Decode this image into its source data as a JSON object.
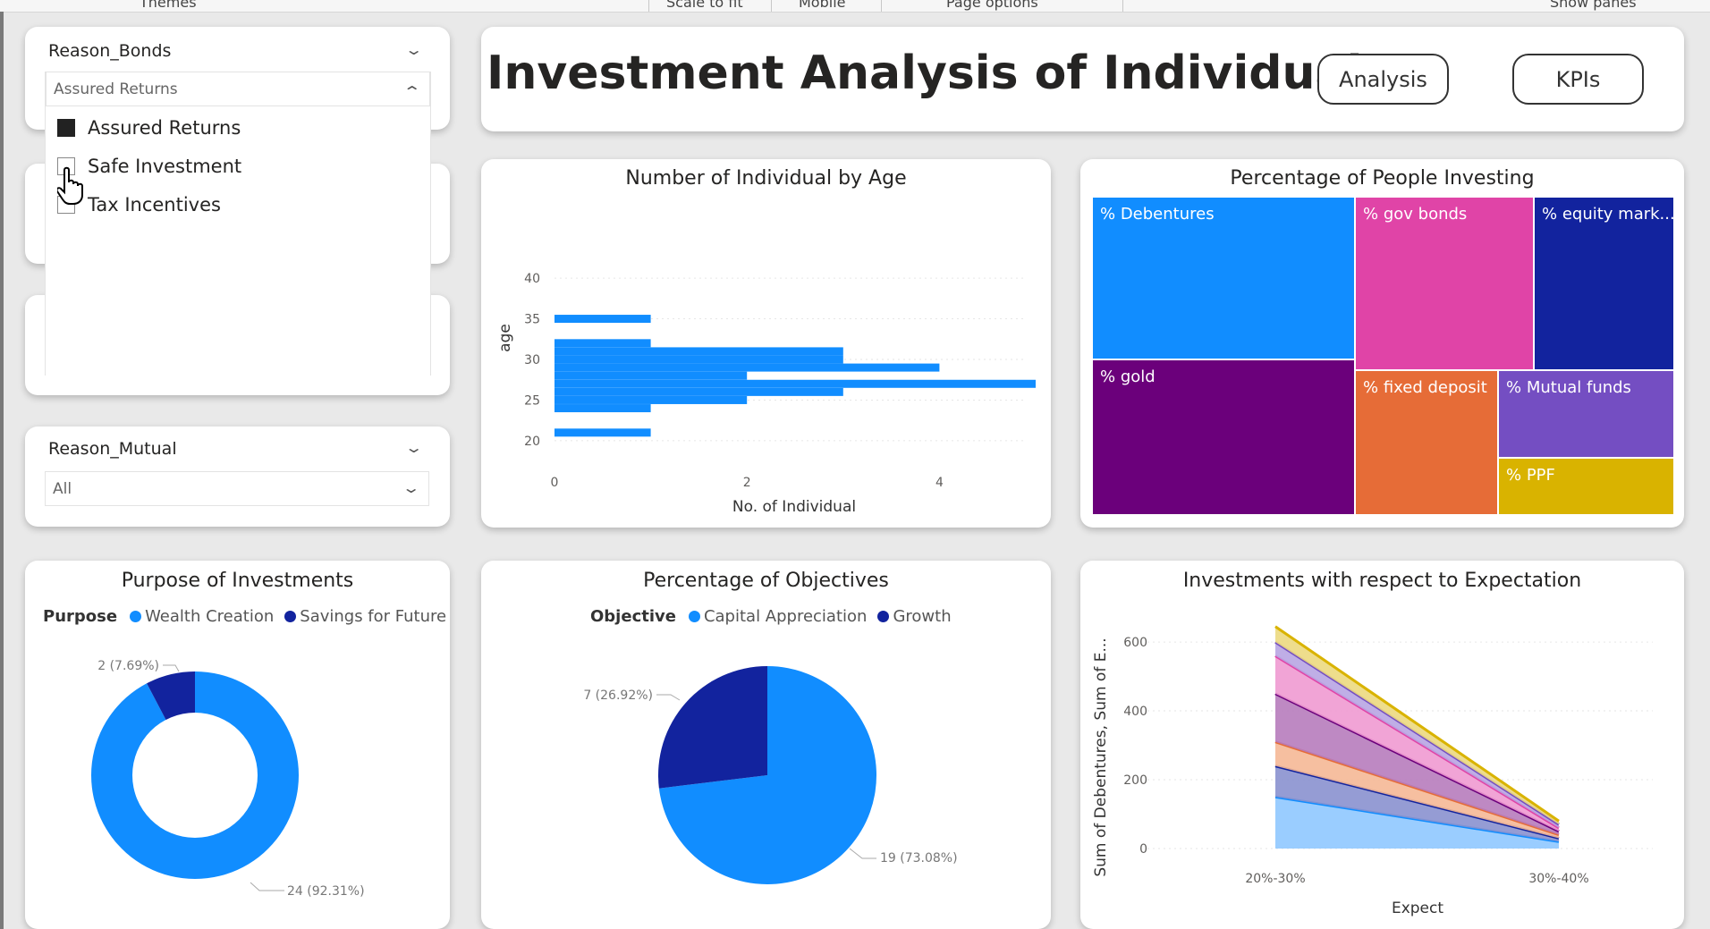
{
  "toolbar": {
    "items": [
      "Themes",
      "Scale to fit",
      "Mobile",
      "Page options",
      "Show panes"
    ]
  },
  "header": {
    "title": "Investment Analysis of Individual",
    "buttons": [
      "Analysis",
      "KPIs"
    ]
  },
  "slicer_bonds": {
    "title": "Reason_Bonds",
    "selected": "Assured Returns",
    "options": [
      {
        "label": "Assured Returns",
        "checked": true
      },
      {
        "label": "Safe Investment",
        "checked": false
      },
      {
        "label": "Tax Incentives",
        "checked": false
      }
    ]
  },
  "slicer_mutual": {
    "title": "Reason_Mutual",
    "selected": "All"
  },
  "colors": {
    "primary": "#118dff",
    "dark": "#12239e",
    "page_bg": "#e9e9e9"
  },
  "cursor": "hand-pointer-icon",
  "charts": {
    "age": {
      "title": "Number of Individual by Age"
    },
    "pct_invest": {
      "title": "Percentage of People Investing"
    },
    "purpose": {
      "title": "Purpose of Investments",
      "legend_title": "Purpose"
    },
    "objectives": {
      "title": "Percentage of Objectives",
      "legend_title": "Objective"
    },
    "expectation": {
      "title": "Investments with respect to Expectation"
    }
  },
  "chart_data": [
    {
      "id": "age",
      "type": "bar",
      "orientation": "horizontal",
      "title": "Number of Individual by Age",
      "xlabel": "No. of Individual",
      "ylabel": "age",
      "xlim": [
        0,
        5
      ],
      "ylim": [
        19,
        41
      ],
      "x_ticks": [
        0,
        2,
        4
      ],
      "y_ticks": [
        20,
        25,
        30,
        35,
        40
      ],
      "categories": [
        21,
        24,
        25,
        26,
        27,
        28,
        29,
        30,
        31,
        32,
        35
      ],
      "values": [
        1,
        1,
        2,
        3,
        5,
        2,
        4,
        3,
        3,
        1,
        1
      ],
      "grid": true
    },
    {
      "id": "pct_invest",
      "type": "treemap",
      "title": "Percentage of People Investing",
      "items": [
        {
          "label": "% Debentures",
          "color": "#118dff"
        },
        {
          "label": "% gov bonds",
          "color": "#e044a7"
        },
        {
          "label": "% equity mark...",
          "color": "#12239e"
        },
        {
          "label": "% gold",
          "color": "#6b007b"
        },
        {
          "label": "% fixed deposit",
          "color": "#e66c37"
        },
        {
          "label": "% Mutual funds",
          "color": "#744ec2"
        },
        {
          "label": "% PPF",
          "color": "#d9b300"
        }
      ]
    },
    {
      "id": "purpose",
      "type": "pie",
      "variant": "donut",
      "title": "Purpose of Investments",
      "legend_title": "Purpose",
      "series": [
        {
          "name": "Wealth Creation",
          "value": 24,
          "label": "24 (92.31%)",
          "color": "#118dff"
        },
        {
          "name": "Savings for Future",
          "value": 2,
          "label": "2 (7.69%)",
          "color": "#12239e"
        }
      ]
    },
    {
      "id": "objectives",
      "type": "pie",
      "title": "Percentage of Objectives",
      "legend_title": "Objective",
      "series": [
        {
          "name": "Capital Appreciation",
          "value": 19,
          "label": "19 (73.08%)",
          "color": "#118dff"
        },
        {
          "name": "Growth",
          "value": 7,
          "label": "7 (26.92%)",
          "color": "#12239e"
        }
      ]
    },
    {
      "id": "expectation",
      "type": "area",
      "stacked": true,
      "title": "Investments with respect to Expectation",
      "xlabel": "Expect",
      "ylabel": "Sum of Debentures, Sum of E...",
      "categories": [
        "20%-30%",
        "30%-40%"
      ],
      "ylim": [
        0,
        660
      ],
      "y_ticks": [
        0,
        200,
        400,
        600
      ],
      "grid": true,
      "series": [
        {
          "values": [
            150,
            20
          ],
          "fill": "#8fc8ff",
          "line": "#118dff"
        },
        {
          "values": [
            90,
            10
          ],
          "fill": "#8a91cf",
          "line": "#12239e"
        },
        {
          "values": [
            70,
            10
          ],
          "fill": "#f5b896",
          "line": "#e66c37"
        },
        {
          "values": [
            140,
            10
          ],
          "fill": "#b77cbc",
          "line": "#6b007b"
        },
        {
          "values": [
            110,
            10
          ],
          "fill": "#f09ad1",
          "line": "#e044a7"
        },
        {
          "values": [
            40,
            10
          ],
          "fill": "#b8a5e3",
          "line": "#744ec2"
        },
        {
          "values": [
            45,
            10
          ],
          "fill": "#ecd980",
          "line": "#d9b300"
        }
      ]
    }
  ]
}
